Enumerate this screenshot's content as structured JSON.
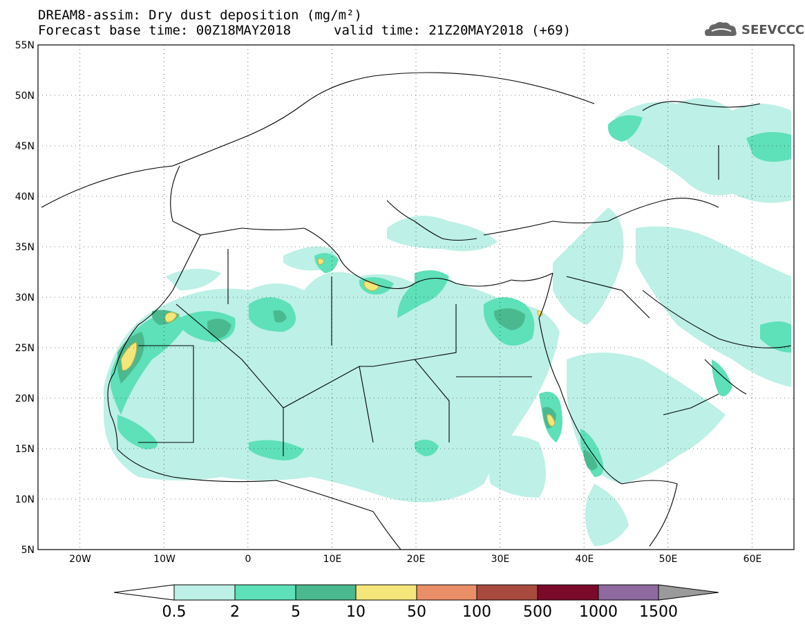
{
  "header": {
    "title": "DREAM8-assim: Dry dust deposition (mg/m²)",
    "base_time": "Forecast base time: 00Z18MAY2018",
    "valid_time": "valid time: 21Z20MAY2018 (+69)",
    "logo_text": "SEEVCCC"
  },
  "axes": {
    "lat_labels": [
      "55N",
      "50N",
      "45N",
      "40N",
      "35N",
      "30N",
      "25N",
      "20N",
      "15N",
      "10N",
      "5N"
    ],
    "lon_labels": [
      "20W",
      "10W",
      "0",
      "10E",
      "20E",
      "30E",
      "40E",
      "50E",
      "60E"
    ]
  },
  "colorbar": {
    "labels": [
      "0.5",
      "2",
      "5",
      "10",
      "50",
      "100",
      "500",
      "1000",
      "1500"
    ],
    "colors": [
      "#bdf0e6",
      "#5ee0b8",
      "#4bb98f",
      "#f5e67a",
      "#ea8e68",
      "#a94a3e",
      "#7b0a2a",
      "#8e6aa0",
      "#9a9a9a"
    ]
  },
  "map": {
    "lon_range": [
      -25,
      65
    ],
    "lat_range": [
      5,
      55
    ],
    "background": "#ffffff",
    "coast_color": "#000000"
  }
}
